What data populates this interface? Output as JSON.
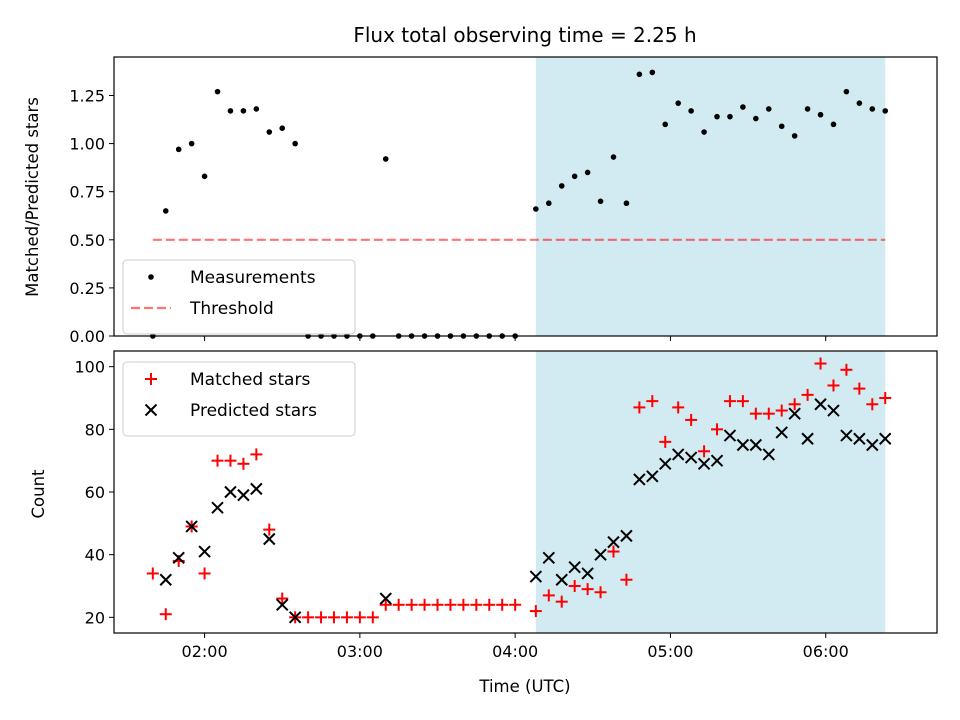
{
  "chart_data": {
    "title": "Flux total observing time = 2.25 h",
    "xlabel": "Time (UTC)",
    "x_unit": "minutes since 00:00 UTC",
    "xlim": [
      85,
      403
    ],
    "xticks": [
      {
        "value": 120,
        "label": "02:00"
      },
      {
        "value": 180,
        "label": "03:00"
      },
      {
        "value": 240,
        "label": "04:00"
      },
      {
        "value": 300,
        "label": "05:00"
      },
      {
        "value": 360,
        "label": "06:00"
      }
    ],
    "shaded_span": {
      "x0": 248,
      "x1": 383,
      "color": "#add8e6"
    },
    "panels": [
      {
        "type": "scatter",
        "ylabel": "Matched/Predicted stars",
        "ylim": [
          0,
          1.45
        ],
        "yticks": [
          "0.00",
          "0.25",
          "0.50",
          "0.75",
          "1.00",
          "1.25"
        ],
        "legend_position": "lower-left",
        "series": [
          {
            "name": "Measurements",
            "marker": "dot",
            "color": "#000000",
            "x": [
              100,
              105,
              110,
              115,
              120,
              125,
              130,
              135,
              140,
              145,
              150,
              155,
              160,
              165,
              170,
              175,
              180,
              185,
              190,
              195,
              200,
              205,
              210,
              215,
              220,
              225,
              230,
              235,
              240,
              248,
              253,
              258,
              263,
              268,
              273,
              278,
              283,
              288,
              293,
              298,
              303,
              308,
              313,
              318,
              323,
              328,
              333,
              338,
              343,
              348,
              353,
              358,
              363,
              368,
              373,
              378,
              383
            ],
            "values": [
              0,
              0.65,
              0.97,
              1.0,
              0.83,
              1.27,
              1.17,
              1.17,
              1.18,
              1.06,
              1.08,
              1.0,
              0,
              0,
              0,
              0,
              0,
              0,
              0.92,
              0,
              0,
              0,
              0,
              0,
              0,
              0,
              0,
              0,
              0,
              0.66,
              0.69,
              0.78,
              0.83,
              0.85,
              0.7,
              0.93,
              0.69,
              1.36,
              1.37,
              1.1,
              1.21,
              1.17,
              1.06,
              1.14,
              1.14,
              1.19,
              1.13,
              1.18,
              1.09,
              1.04,
              1.18,
              1.15,
              1.1,
              1.27,
              1.21,
              1.18,
              1.17
            ]
          },
          {
            "name": "Threshold",
            "marker": "dashed-line",
            "color": "#ff0000",
            "x": [
              100,
              383
            ],
            "values": [
              0.5,
              0.5
            ]
          }
        ]
      },
      {
        "type": "scatter",
        "ylabel": "Count",
        "ylim": [
          15,
          105
        ],
        "yticks": [
          "20",
          "40",
          "60",
          "80",
          "100"
        ],
        "legend_position": "top-left",
        "series": [
          {
            "name": "Matched stars",
            "marker": "plus",
            "color": "#ff0000",
            "x": [
              100,
              105,
              110,
              115,
              120,
              125,
              130,
              135,
              140,
              145,
              150,
              155,
              160,
              165,
              170,
              175,
              180,
              185,
              190,
              195,
              200,
              205,
              210,
              215,
              220,
              225,
              230,
              235,
              240,
              248,
              253,
              258,
              263,
              268,
              273,
              278,
              283,
              288,
              293,
              298,
              303,
              308,
              313,
              318,
              323,
              328,
              333,
              338,
              343,
              348,
              353,
              358,
              363,
              368,
              373,
              378,
              383
            ],
            "values": [
              34,
              21,
              38,
              49,
              34,
              70,
              70,
              69,
              72,
              48,
              26,
              20,
              20,
              20,
              20,
              20,
              20,
              20,
              24,
              24,
              24,
              24,
              24,
              24,
              24,
              24,
              24,
              24,
              24,
              22,
              27,
              25,
              30,
              29,
              28,
              41,
              32,
              87,
              89,
              76,
              87,
              83,
              73,
              80,
              89,
              89,
              85,
              85,
              86,
              88,
              91,
              101,
              94,
              99,
              93,
              88,
              90
            ]
          },
          {
            "name": "Predicted stars",
            "marker": "x",
            "color": "#000000",
            "x": [
              100,
              105,
              110,
              115,
              120,
              125,
              130,
              135,
              140,
              145,
              150,
              155,
              190,
              248,
              253,
              258,
              263,
              268,
              273,
              278,
              283,
              288,
              293,
              298,
              303,
              308,
              313,
              318,
              323,
              328,
              333,
              338,
              343,
              348,
              353,
              358,
              363,
              368,
              373,
              378,
              383
            ],
            "values": [
              null,
              32,
              39,
              49,
              41,
              55,
              60,
              59,
              61,
              45,
              24,
              20,
              26,
              33,
              39,
              32,
              36,
              34,
              40,
              44,
              46,
              64,
              65,
              69,
              72,
              71,
              69,
              70,
              78,
              75,
              75,
              72,
              79,
              85,
              77,
              88,
              86,
              78,
              77,
              75,
              77
            ]
          }
        ]
      }
    ]
  }
}
